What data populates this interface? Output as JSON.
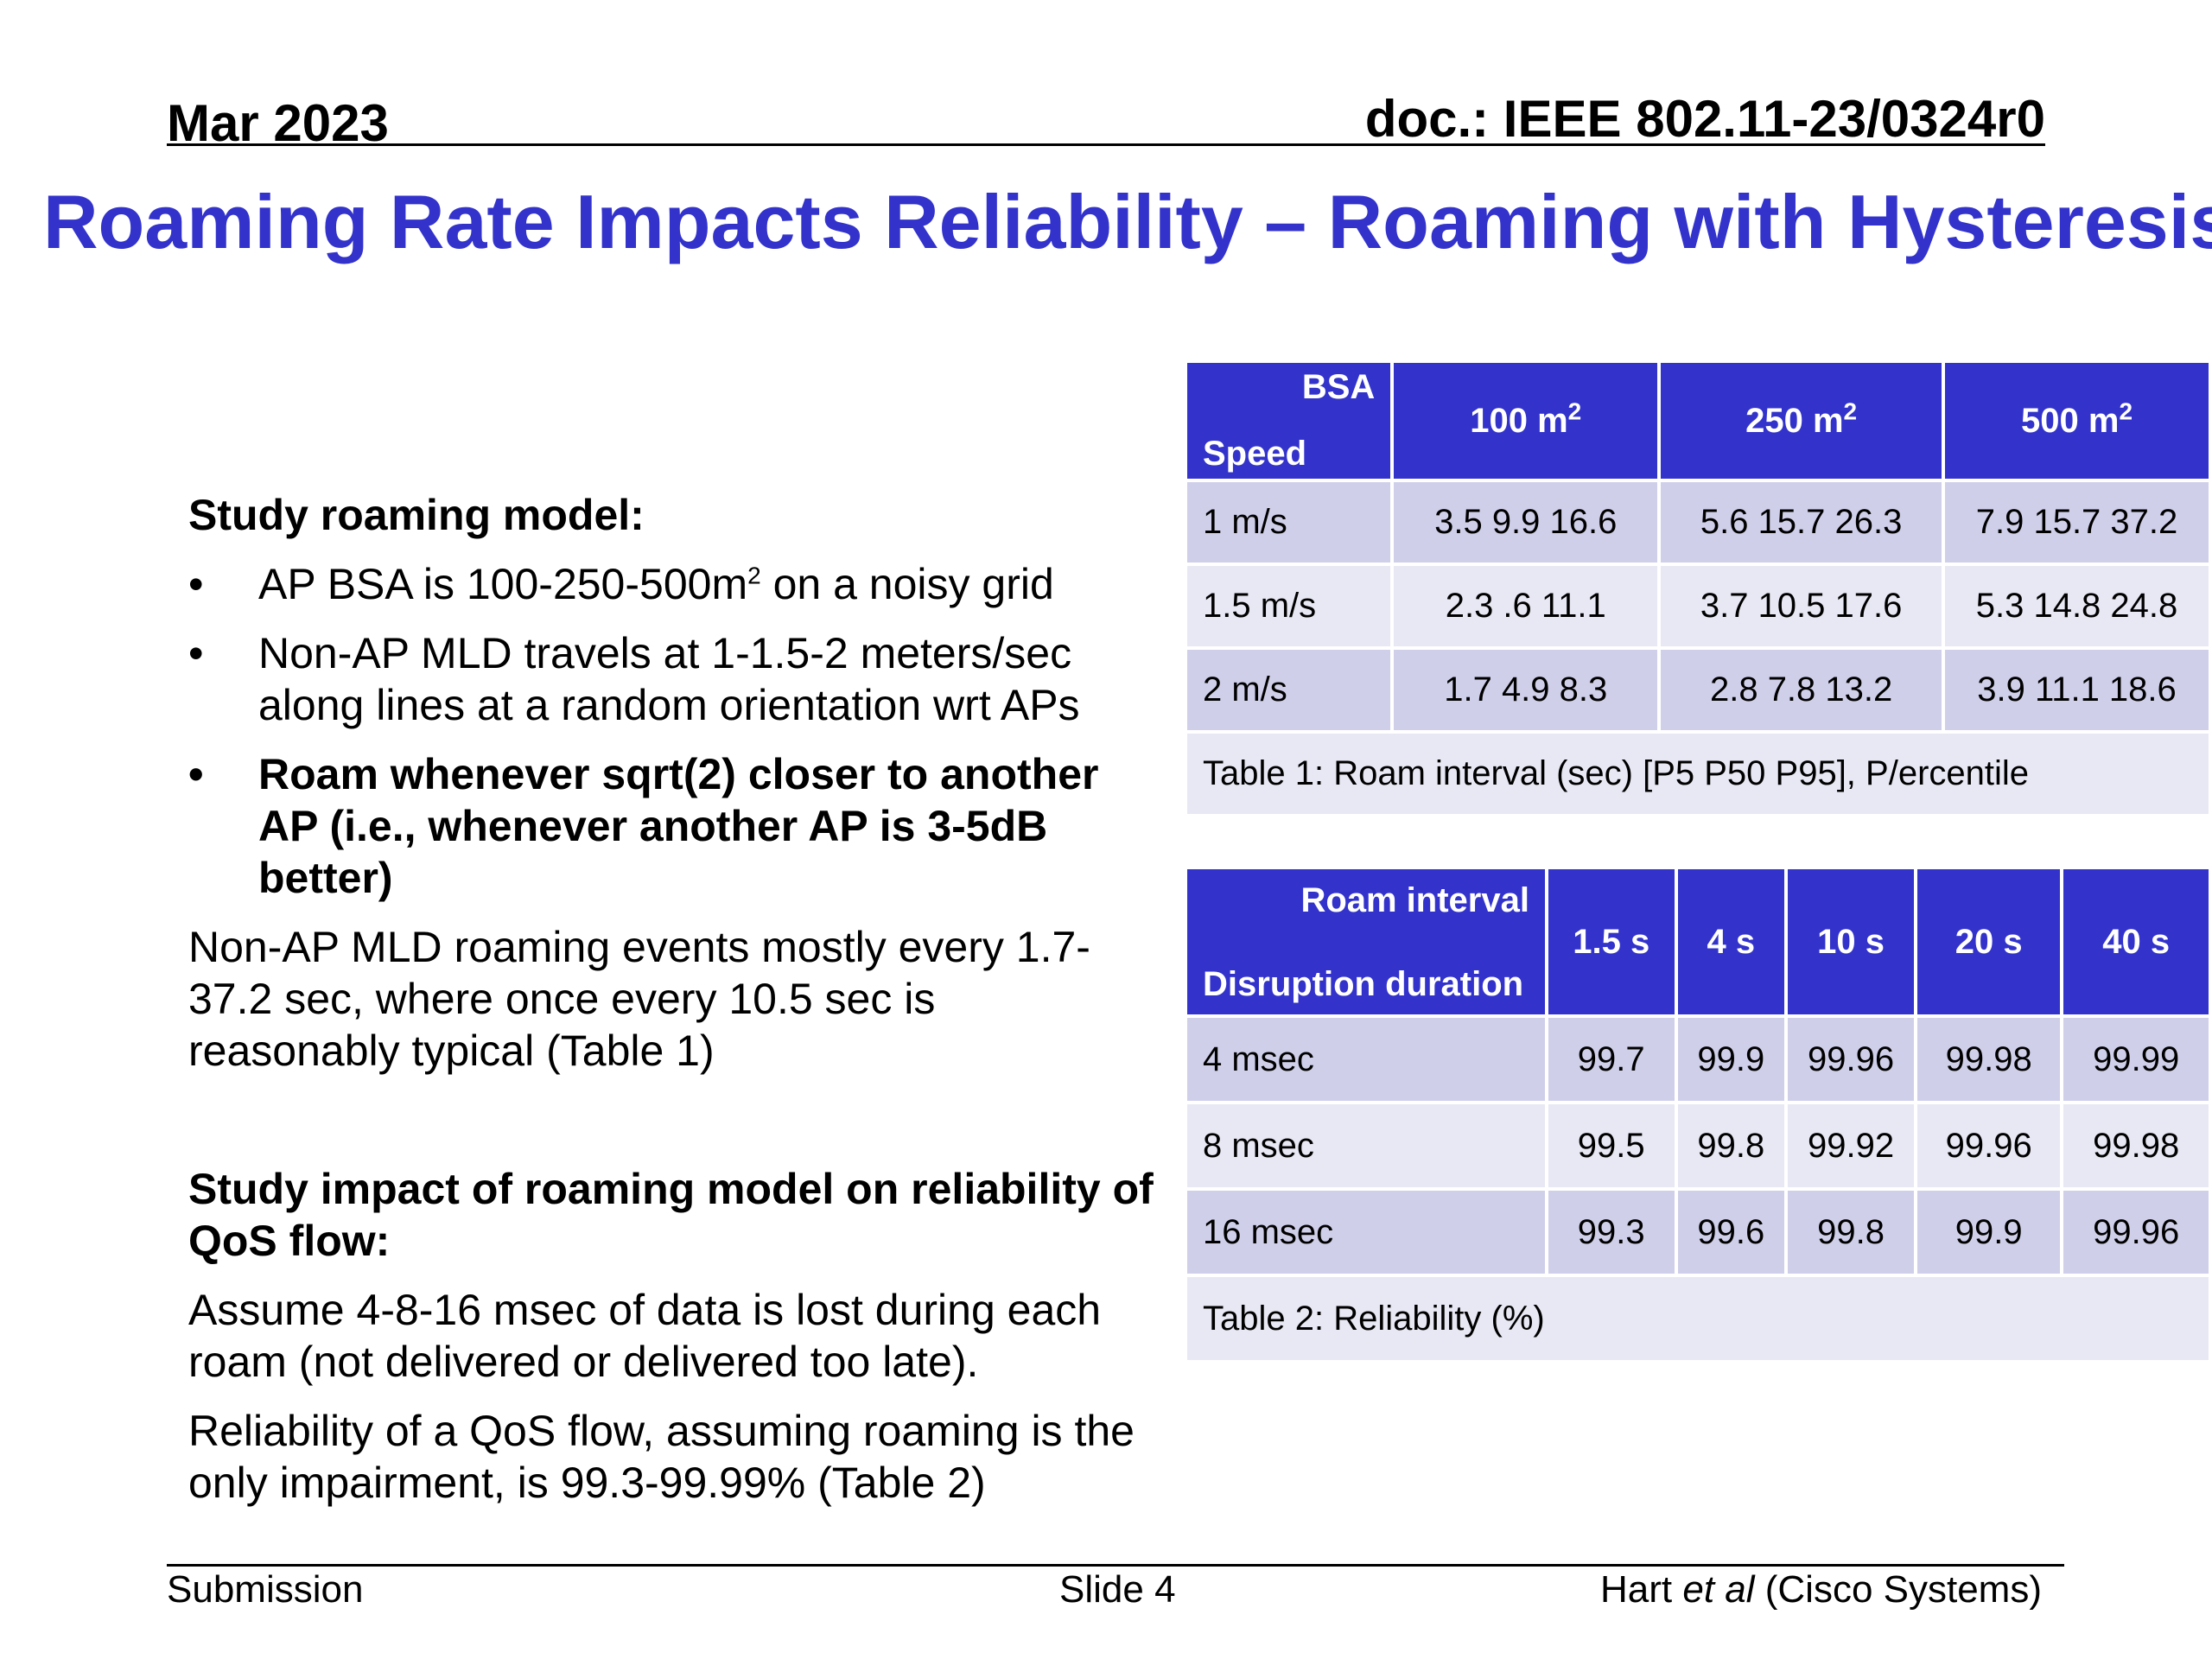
{
  "header": {
    "date": "Mar 2023",
    "doc": "doc.: IEEE 802.11-23/0324r0"
  },
  "title": "Roaming Rate Impacts Reliability – Roaming with Hysteresis",
  "left": {
    "heading1": "Study roaming model:",
    "bullets": [
      {
        "pre": "AP BSA is 100-250-500m",
        "sup": "2",
        "post": " on a noisy grid"
      },
      {
        "text": "Non-AP MLD travels at 1-1.5-2 meters/sec along lines at a random orientation wrt APs"
      },
      {
        "text": "Roam whenever sqrt(2) closer to another AP (i.e., whenever another AP is 3-5dB better)"
      }
    ],
    "para1": "Non-AP MLD roaming events mostly every 1.7-37.2 sec, where once every 10.5 sec is reasonably typical (Table 1)",
    "heading2": "Study impact of roaming model on reliability of QoS flow:",
    "para2": "Assume 4-8-16 msec of data is lost during each roam (not delivered or delivered too late).",
    "para3": "Reliability of a QoS flow, assuming roaming is the only impairment, is 99.3-99.99% (Table 2)"
  },
  "table1": {
    "corner_top": "BSA",
    "corner_bottom": "Speed",
    "cols": [
      {
        "base": "100 m",
        "sup": "2"
      },
      {
        "base": "250 m",
        "sup": "2"
      },
      {
        "base": "500 m",
        "sup": "2"
      }
    ],
    "rows": [
      {
        "label": "1 m/s",
        "cells": [
          "3.5 9.9 16.6",
          "5.6 15.7 26.3",
          "7.9 15.7 37.2"
        ]
      },
      {
        "label": "1.5 m/s",
        "cells": [
          "2.3 .6 11.1",
          "3.7 10.5 17.6",
          "5.3 14.8 24.8"
        ]
      },
      {
        "label": "2 m/s",
        "cells": [
          "1.7 4.9 8.3",
          "2.8 7.8 13.2",
          "3.9 11.1 18.6"
        ]
      }
    ],
    "caption": "Table 1: Roam interval (sec) [P5 P50 P95], P/ercentile"
  },
  "table2": {
    "corner_top": "Roam interval",
    "corner_bottom": "Disruption duration",
    "cols": [
      "1.5 s",
      "4 s",
      "10 s",
      "20 s",
      "40 s"
    ],
    "rows": [
      {
        "label": "4 msec",
        "cells": [
          "99.7",
          "99.9",
          "99.96",
          "99.98",
          "99.99"
        ]
      },
      {
        "label": "8 msec",
        "cells": [
          "99.5",
          "99.8",
          "99.92",
          "99.96",
          "99.98"
        ]
      },
      {
        "label": "16 msec",
        "cells": [
          "99.3",
          "99.6",
          "99.8",
          "99.9",
          "99.96"
        ]
      }
    ],
    "caption": "Table 2: Reliability (%)"
  },
  "footer": {
    "left": "Submission",
    "mid": "Slide 4",
    "right_pre": "Hart ",
    "right_ital": "et al",
    "right_post": " (Cisco Systems)"
  }
}
